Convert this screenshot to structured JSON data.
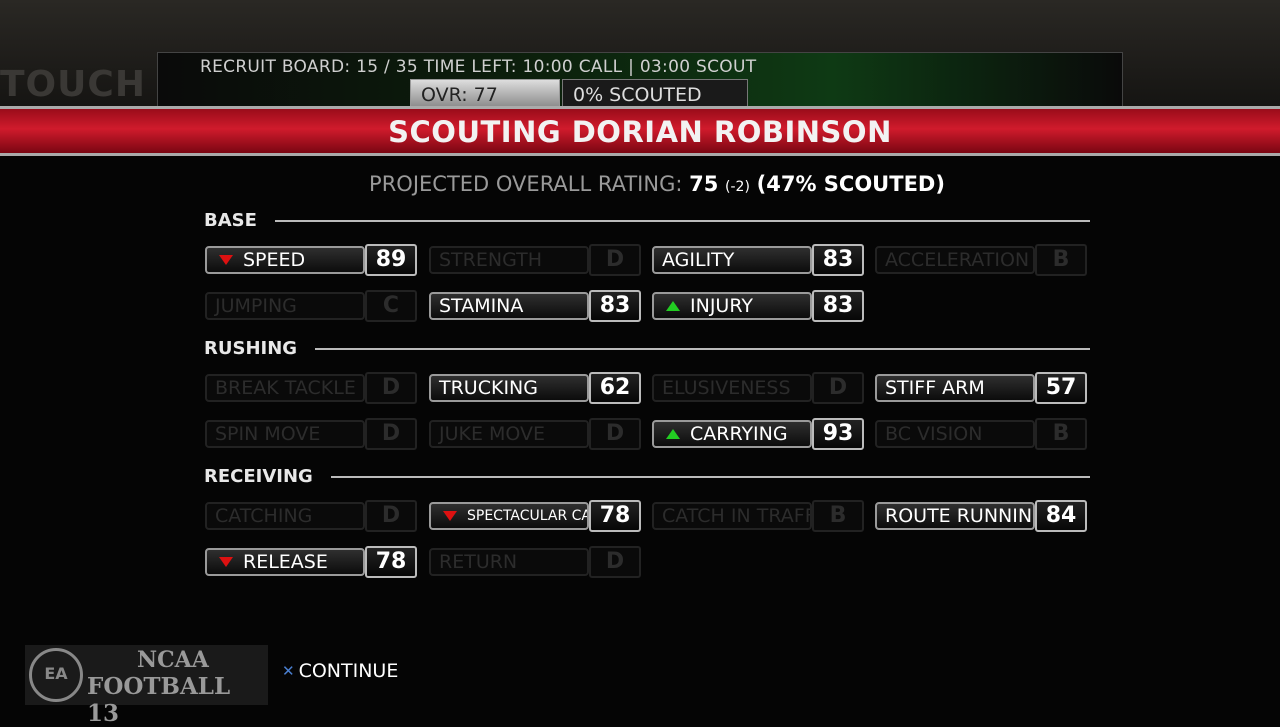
{
  "background": {
    "touch_text": "TOUCH"
  },
  "recruit_board": {
    "status": "RECRUIT BOARD: 15 / 35 TIME LEFT: 10:00 CALL | 03:00 SCOUT",
    "ovr": "OVR: 77",
    "scouted": "0% SCOUTED"
  },
  "banner": {
    "title": "SCOUTING DORIAN ROBINSON",
    "color": "#c8182a"
  },
  "projection": {
    "label": "PROJECTED OVERALL RATING:",
    "value": "75",
    "delta": "(-2)",
    "scouted": "(47% SCOUTED)"
  },
  "sections": [
    {
      "title": "BASE",
      "stats": [
        {
          "label": "SPEED",
          "value": "89",
          "arrow": "down",
          "scouted": true
        },
        {
          "label": "STRENGTH",
          "value": "D",
          "scouted": false
        },
        {
          "label": "AGILITY",
          "value": "83",
          "scouted": true
        },
        {
          "label": "ACCELERATION",
          "value": "B",
          "scouted": false
        },
        {
          "label": "JUMPING",
          "value": "C",
          "scouted": false
        },
        {
          "label": "STAMINA",
          "value": "83",
          "scouted": true
        },
        {
          "label": "INJURY",
          "value": "83",
          "arrow": "up",
          "scouted": true
        }
      ]
    },
    {
      "title": "RUSHING",
      "stats": [
        {
          "label": "BREAK TACKLE",
          "value": "D",
          "scouted": false
        },
        {
          "label": "TRUCKING",
          "value": "62",
          "scouted": true
        },
        {
          "label": "ELUSIVENESS",
          "value": "D",
          "scouted": false
        },
        {
          "label": "STIFF ARM",
          "value": "57",
          "scouted": true
        },
        {
          "label": "SPIN MOVE",
          "value": "D",
          "scouted": false
        },
        {
          "label": "JUKE MOVE",
          "value": "D",
          "scouted": false
        },
        {
          "label": "CARRYING",
          "value": "93",
          "arrow": "up",
          "scouted": true
        },
        {
          "label": "BC VISION",
          "value": "B",
          "scouted": false
        }
      ]
    },
    {
      "title": "RECEIVING",
      "stats": [
        {
          "label": "CATCHING",
          "value": "D",
          "scouted": false
        },
        {
          "label": "SPECTACULAR CATCH",
          "value": "78",
          "arrow": "down",
          "scouted": true,
          "small": true
        },
        {
          "label": "CATCH IN TRAFFIC",
          "value": "B",
          "scouted": false
        },
        {
          "label": "ROUTE RUNNING",
          "value": "84",
          "scouted": true
        },
        {
          "label": "RELEASE",
          "value": "78",
          "arrow": "down",
          "scouted": true
        },
        {
          "label": "RETURN",
          "value": "D",
          "scouted": false
        }
      ]
    }
  ],
  "footer": {
    "continue_label": "CONTINUE",
    "button_icon": "x-button-icon",
    "logo_text": "EA SPORTS",
    "game_title_1": "NCAA",
    "game_title_2": "FOOTBALL 13"
  }
}
